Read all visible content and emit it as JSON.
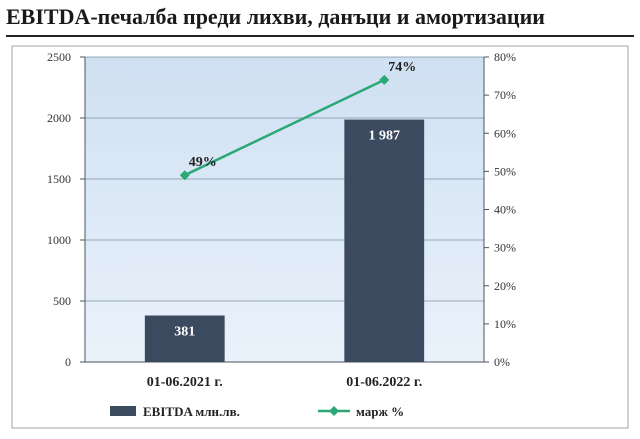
{
  "page_title": "EBITDA-печалба преди лихви, данъци и амортизации",
  "chart_data": {
    "type": "bar",
    "title": "",
    "categories": [
      "01-06.2021 г.",
      "01-06.2022 г."
    ],
    "series": [
      {
        "name": "EBITDA  млн.лв.",
        "kind": "bar",
        "axis": "left",
        "values": [
          381,
          1987
        ],
        "labels": [
          "381",
          "1 987"
        ]
      },
      {
        "name": "марж %",
        "kind": "line",
        "axis": "right",
        "values": [
          49,
          74
        ],
        "labels": [
          "49%",
          "74%"
        ]
      }
    ],
    "y_left": {
      "min": 0,
      "max": 2500,
      "ticks": [
        "0",
        "500",
        "1000",
        "1500",
        "2000",
        "2500"
      ]
    },
    "y_right": {
      "min": 0,
      "max": 80,
      "ticks": [
        "0%",
        "10%",
        "20%",
        "30%",
        "40%",
        "50%",
        "60%",
        "70%",
        "80%"
      ]
    },
    "grid": true,
    "legend_position": "bottom",
    "colors": {
      "bar": "#3b4a5e",
      "line": "#2aa876",
      "plot_bg_top": "#cfe0f2",
      "plot_bg_bottom": "#eaf2fb",
      "grid": "#7f8fa0"
    }
  }
}
